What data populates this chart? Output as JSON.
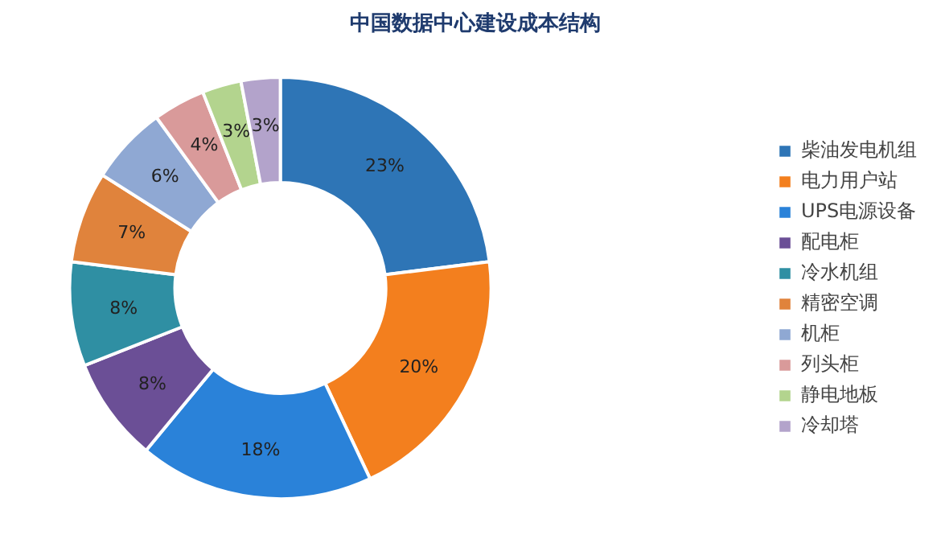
{
  "chart_data": {
    "type": "donut",
    "title": "中国数据中心建设成本结构",
    "categories": [
      "柴油发电机组",
      "电力用户站",
      "UPS电源设备",
      "配电柜",
      "冷水机组",
      "精密空调",
      "机柜",
      "列头柜",
      "静电地板",
      "冷却塔"
    ],
    "values": [
      23,
      20,
      18,
      8,
      8,
      7,
      6,
      4,
      3,
      3
    ],
    "colors": [
      "#2e75b6",
      "#f37f1e",
      "#2a82d9",
      "#6b4f96",
      "#2f8fa3",
      "#e0833c",
      "#8fa8d3",
      "#d99a9a",
      "#b3d48e",
      "#b3a3cb"
    ],
    "value_labels": [
      "23%",
      "20%",
      "18%",
      "8%",
      "8%",
      "7%",
      "6%",
      "4%",
      "3%",
      "3%"
    ],
    "legend": "right"
  }
}
